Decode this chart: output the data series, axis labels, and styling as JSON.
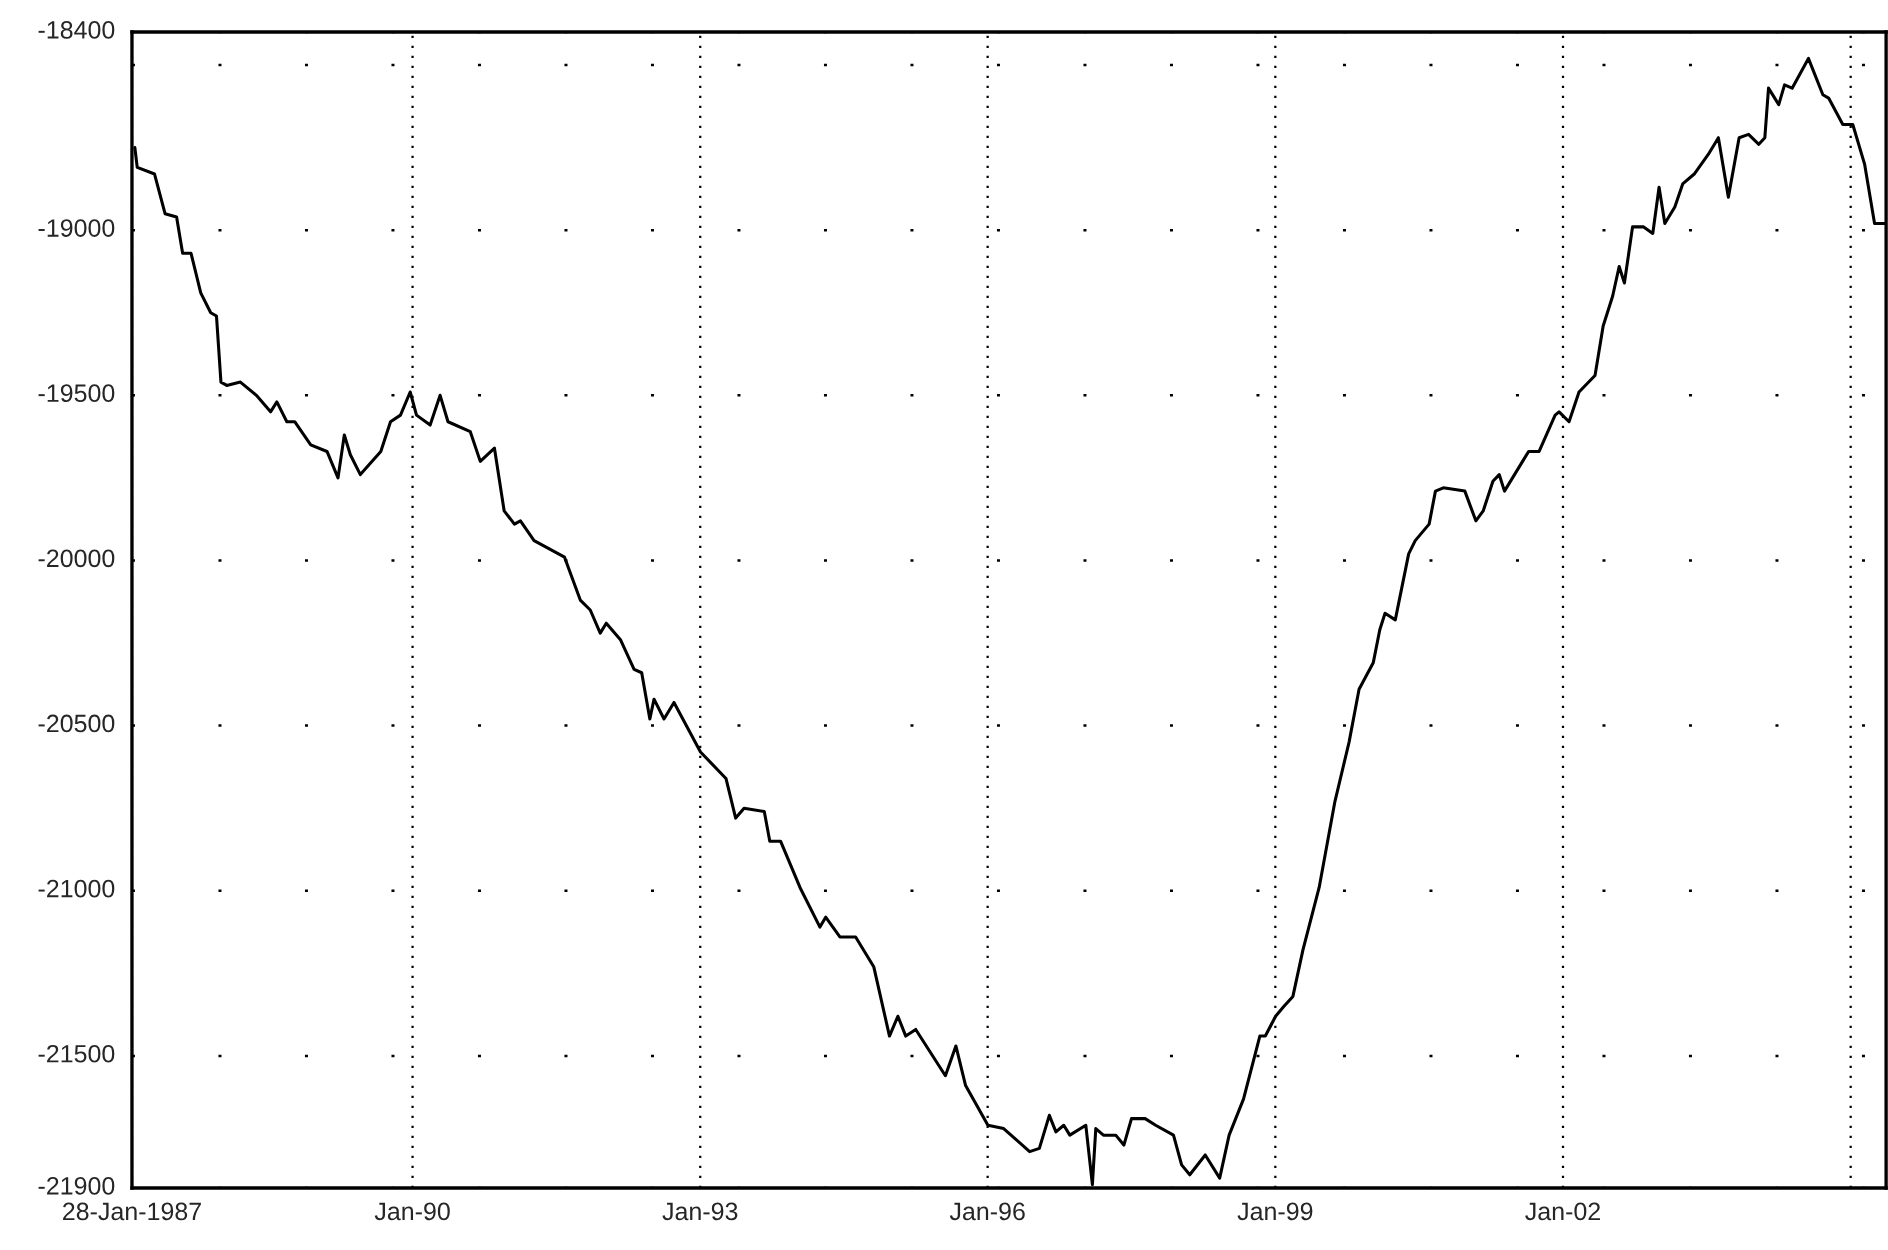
{
  "chart_data": {
    "type": "line",
    "x": [
      "1987-02-08",
      "1987-02-17",
      "1987-04-24",
      "1987-06-03",
      "1987-07-17",
      "1987-08-09",
      "1987-09-10",
      "1987-10-17",
      "1987-11-24",
      "1987-12-16",
      "1988-01-02",
      "1988-01-24",
      "1988-03-16",
      "1988-05-16",
      "1988-07-09",
      "1988-08-02",
      "1988-09-09",
      "1988-10-09",
      "1988-12-09",
      "1989-02-09",
      "1989-03-23",
      "1989-04-16",
      "1989-05-09",
      "1989-06-16",
      "1989-09-02",
      "1989-10-09",
      "1989-11-16",
      "1989-12-23",
      "1990-01-16",
      "1990-03-09",
      "1990-04-16",
      "1990-05-16",
      "1990-08-09",
      "1990-09-16",
      "1990-11-09",
      "1990-12-16",
      "1991-01-24",
      "1991-02-16",
      "1991-04-09",
      "1991-08-03",
      "1991-10-02",
      "1991-11-09",
      "1991-12-17",
      "1992-01-09",
      "1992-03-03",
      "1992-04-24",
      "1992-05-23",
      "1992-06-23",
      "1992-07-09",
      "1992-08-16",
      "1992-09-23",
      "1993-01-02",
      "1993-04-09",
      "1993-05-16",
      "1993-06-17",
      "1993-09-02",
      "1993-09-23",
      "1993-11-03",
      "1994-01-16",
      "1994-04-02",
      "1994-04-24",
      "1994-06-17",
      "1994-08-16",
      "1994-10-24",
      "1994-12-23",
      "1995-01-24",
      "1995-02-23",
      "1995-04-02",
      "1995-07-24",
      "1995-09-02",
      "1995-10-09",
      "1996-01-02",
      "1996-03-02",
      "1996-06-09",
      "1996-07-16",
      "1996-08-23",
      "1996-09-17",
      "1996-10-17",
      "1996-11-09",
      "1997-01-09",
      "1997-02-03",
      "1997-02-16",
      "1997-03-17",
      "1997-05-03",
      "1997-06-03",
      "1997-07-02",
      "1997-08-23",
      "1997-10-02",
      "1997-12-09",
      "1998-01-09",
      "1998-02-09",
      "1998-04-09",
      "1998-06-03",
      "1998-07-09",
      "1998-09-02",
      "1998-11-03",
      "1998-11-24",
      "1999-01-02",
      "1999-02-03",
      "1999-03-09",
      "1999-04-16",
      "1999-06-17",
      "1999-08-16",
      "1999-10-09",
      "1999-11-16",
      "2000-01-09",
      "2000-02-03",
      "2000-02-23",
      "2000-04-02",
      "2000-05-23",
      "2000-06-17",
      "2000-08-09",
      "2000-09-02",
      "2000-10-02",
      "2000-12-23",
      "2001-02-03",
      "2001-03-03",
      "2001-04-09",
      "2001-05-03",
      "2001-05-23",
      "2001-08-23",
      "2001-10-02",
      "2001-12-02",
      "2001-12-17",
      "2002-01-24",
      "2002-03-03",
      "2002-05-03",
      "2002-06-03",
      "2002-07-09",
      "2002-08-03",
      "2002-08-23",
      "2002-09-23",
      "2002-11-03",
      "2002-12-09",
      "2003-01-02",
      "2003-01-24",
      "2003-03-03",
      "2003-04-02",
      "2003-05-16",
      "2003-07-09",
      "2003-08-16",
      "2003-09-23",
      "2003-11-03",
      "2003-12-09",
      "2004-01-17",
      "2004-02-09",
      "2004-02-23",
      "2004-04-02",
      "2004-04-24",
      "2004-05-23",
      "2004-07-24",
      "2004-09-17",
      "2004-10-09",
      "2004-12-02",
      "2005-01-09",
      "2005-02-23",
      "2005-04-02",
      "2005-05-16"
    ],
    "series": [
      {
        "color": "#000000",
        "values": [
          -18750,
          -18810,
          -18830,
          -18950,
          -18960,
          -19070,
          -19070,
          -19190,
          -19250,
          -19260,
          -19460,
          -19470,
          -19460,
          -19500,
          -19550,
          -19520,
          -19580,
          -19580,
          -19650,
          -19670,
          -19750,
          -19620,
          -19680,
          -19740,
          -19670,
          -19580,
          -19560,
          -19490,
          -19560,
          -19590,
          -19500,
          -19580,
          -19610,
          -19700,
          -19660,
          -19850,
          -19890,
          -19880,
          -19940,
          -19990,
          -20120,
          -20150,
          -20220,
          -20190,
          -20240,
          -20330,
          -20340,
          -20480,
          -20420,
          -20480,
          -20430,
          -20580,
          -20660,
          -20780,
          -20750,
          -20760,
          -20850,
          -20850,
          -20990,
          -21110,
          -21080,
          -21140,
          -21140,
          -21230,
          -21440,
          -21380,
          -21440,
          -21420,
          -21560,
          -21470,
          -21590,
          -21710,
          -21720,
          -21790,
          -21780,
          -21680,
          -21730,
          -21710,
          -21740,
          -21710,
          -21890,
          -21720,
          -21740,
          -21740,
          -21770,
          -21690,
          -21690,
          -21710,
          -21740,
          -21830,
          -21860,
          -21800,
          -21870,
          -21740,
          -21630,
          -21440,
          -21440,
          -21380,
          -21350,
          -21320,
          -21180,
          -20990,
          -20730,
          -20550,
          -20390,
          -20310,
          -20210,
          -20160,
          -20180,
          -19980,
          -19940,
          -19890,
          -19790,
          -19780,
          -19790,
          -19880,
          -19850,
          -19760,
          -19740,
          -19790,
          -19670,
          -19670,
          -19560,
          -19550,
          -19580,
          -19490,
          -19440,
          -19290,
          -19200,
          -19110,
          -19160,
          -18990,
          -18990,
          -19010,
          -18870,
          -18980,
          -18930,
          -18860,
          -18830,
          -18770,
          -18720,
          -18900,
          -18720,
          -18710,
          -18740,
          -18720,
          -18570,
          -18620,
          -18560,
          -18570,
          -18480,
          -18590,
          -18600,
          -18680,
          -18680,
          -18800,
          -18980,
          -18980
        ]
      }
    ],
    "xlim": [
      "1987-01-28",
      "2005-05-16"
    ],
    "xticks": [
      {
        "value": "1987-01-28",
        "label": "28-Jan-1987"
      },
      {
        "value": "1990-01-01",
        "label": "Jan-90"
      },
      {
        "value": "1993-01-01",
        "label": "Jan-93"
      },
      {
        "value": "1996-01-01",
        "label": "Jan-96"
      },
      {
        "value": "1999-01-01",
        "label": "Jan-99"
      },
      {
        "value": "2002-01-01",
        "label": "Jan-02"
      },
      {
        "value": "2005-01-01",
        "label": null
      }
    ],
    "ylim": [
      -21900,
      -18400
    ],
    "yticks": [
      -18400,
      {
        "value": -18500,
        "label": null
      },
      -19000,
      -19500,
      -20000,
      -20500,
      -21000,
      -21500,
      -21900
    ],
    "grid": true,
    "legend": false,
    "marker": "none",
    "line_style": "solid"
  }
}
